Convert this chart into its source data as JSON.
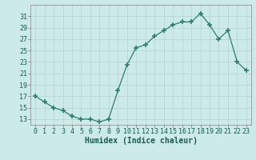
{
  "x": [
    0,
    1,
    2,
    3,
    4,
    5,
    6,
    7,
    8,
    9,
    10,
    11,
    12,
    13,
    14,
    15,
    16,
    17,
    18,
    19,
    20,
    21,
    22,
    23
  ],
  "y": [
    17,
    16,
    15,
    14.5,
    13.5,
    13,
    13,
    12.5,
    13,
    18,
    22.5,
    25.5,
    26,
    27.5,
    28.5,
    29.5,
    30,
    30,
    31.5,
    29.5,
    27,
    28.5,
    23,
    21.5
  ],
  "line_color": "#2e7d6e",
  "marker": "+",
  "marker_size": 4,
  "bg_color": "#cceae8",
  "grid_color": "#b8d8d4",
  "xlabel": "Humidex (Indice chaleur)",
  "xlabel_fontsize": 7,
  "tick_fontsize": 6,
  "ylim": [
    12,
    33
  ],
  "yticks": [
    13,
    15,
    17,
    19,
    21,
    23,
    25,
    27,
    29,
    31
  ],
  "xticks": [
    0,
    1,
    2,
    3,
    4,
    5,
    6,
    7,
    8,
    9,
    10,
    11,
    12,
    13,
    14,
    15,
    16,
    17,
    18,
    19,
    20,
    21,
    22,
    23
  ],
  "xlim": [
    -0.5,
    23.5
  ]
}
